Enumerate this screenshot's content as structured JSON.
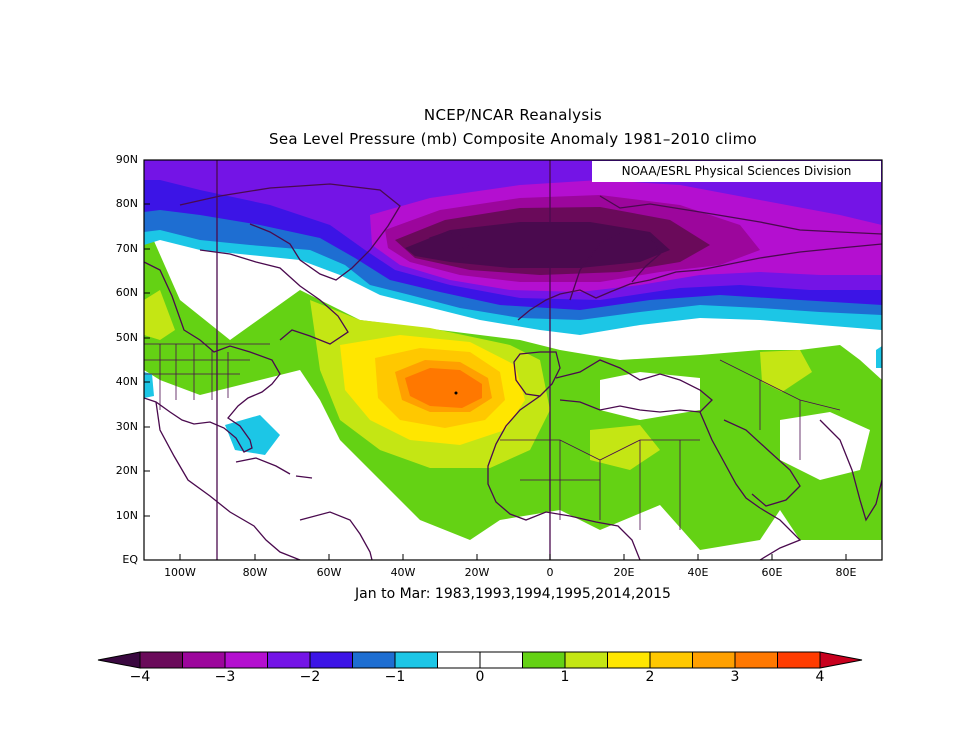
{
  "header": {
    "title": "NCEP/NCAR Reanalysis",
    "subtitle": "Sea Level Pressure (mb) Composite Anomaly 1981–2010 climo"
  },
  "credit": "NOAA/ESRL Physical Sciences Division",
  "period": "Jan to Mar: 1983,1993,1994,1995,2014,2015",
  "latitude_labels": [
    "90N",
    "80N",
    "70N",
    "60N",
    "50N",
    "40N",
    "30N",
    "20N",
    "10N",
    "EQ"
  ],
  "longitude_labels": [
    "100W",
    "80W",
    "60W",
    "40W",
    "20W",
    "0",
    "20E",
    "40E",
    "60E",
    "80E"
  ],
  "colorbar": {
    "labels": [
      "−4",
      "−3",
      "−2",
      "−1",
      "0",
      "1",
      "2",
      "3",
      "4"
    ],
    "colors": [
      "#6a0a5a",
      "#9c069c",
      "#b40fd0",
      "#7414e6",
      "#3c14e6",
      "#1e6ed2",
      "#1cc6e6",
      "#ffffff",
      "#ffffff",
      "#64d214",
      "#c4e614",
      "#ffe600",
      "#ffc800",
      "#ffa000",
      "#ff7800",
      "#ff3c00"
    ],
    "under_color": "#3a0840",
    "over_color": "#c8001e"
  },
  "colors": {
    "strong_low": "#4a0a4e",
    "low": "#9c069c",
    "mid_low": "#6a18e6",
    "coast": "#4a0a4e"
  }
}
